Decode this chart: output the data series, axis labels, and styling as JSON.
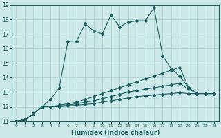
{
  "xlabel": "Humidex (Indice chaleur)",
  "background_color": "#cde8e8",
  "grid_color": "#a8cccc",
  "line_color": "#1a6060",
  "xlim": [
    -0.5,
    23.5
  ],
  "ylim": [
    11,
    19
  ],
  "yticks": [
    11,
    12,
    13,
    14,
    15,
    16,
    17,
    18,
    19
  ],
  "xticks": [
    0,
    1,
    2,
    3,
    4,
    5,
    6,
    7,
    8,
    9,
    10,
    11,
    12,
    13,
    14,
    15,
    16,
    17,
    18,
    19,
    20,
    21,
    22,
    23
  ],
  "x_values": [
    0,
    1,
    2,
    3,
    4,
    5,
    6,
    7,
    8,
    9,
    10,
    11,
    12,
    13,
    14,
    15,
    16,
    17,
    18,
    19,
    20,
    21,
    22,
    23
  ],
  "series": [
    [
      11.0,
      11.1,
      11.5,
      12.0,
      12.5,
      13.3,
      16.5,
      16.5,
      17.7,
      17.2,
      17.0,
      18.3,
      17.5,
      17.8,
      17.9,
      17.9,
      18.8,
      15.5,
      14.6,
      14.1,
      13.3,
      12.9,
      12.9,
      12.9
    ],
    [
      11.0,
      11.1,
      11.5,
      12.0,
      12.0,
      12.1,
      12.2,
      12.3,
      12.5,
      12.7,
      12.9,
      13.1,
      13.3,
      13.5,
      13.7,
      13.9,
      14.1,
      14.3,
      14.5,
      14.7,
      13.3,
      12.9,
      12.9,
      12.9
    ],
    [
      11.0,
      11.1,
      11.5,
      12.0,
      12.0,
      12.05,
      12.1,
      12.2,
      12.3,
      12.4,
      12.55,
      12.7,
      12.85,
      13.0,
      13.1,
      13.2,
      13.3,
      13.4,
      13.5,
      13.6,
      13.2,
      12.9,
      12.9,
      12.9
    ],
    [
      11.0,
      11.1,
      11.5,
      12.0,
      12.0,
      12.0,
      12.05,
      12.1,
      12.15,
      12.2,
      12.3,
      12.4,
      12.5,
      12.6,
      12.7,
      12.75,
      12.8,
      12.85,
      12.9,
      12.95,
      12.9,
      12.9,
      12.9,
      12.9
    ]
  ]
}
